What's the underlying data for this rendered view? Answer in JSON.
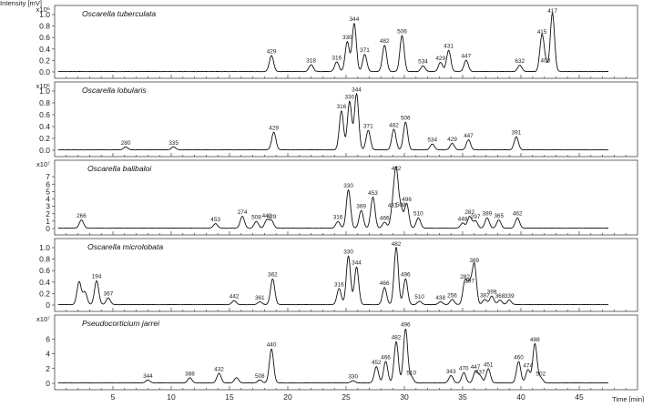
{
  "chart_data": {
    "type": "line",
    "title": "",
    "ylabel": "Intensity [mV]",
    "xlabel": "Time [min]",
    "x_ticks": [
      5,
      10,
      15,
      20,
      25,
      30,
      35,
      40,
      45
    ],
    "xlim": [
      0,
      50
    ],
    "grid": false,
    "panels": [
      {
        "name": "Oscarella tuberculata",
        "y_exponent": "x10⁶",
        "ylim": [
          0,
          1.0
        ],
        "y_ticks": [
          "0.0",
          "0.2",
          "0.4",
          "0.6",
          "0.8",
          "1.0"
        ],
        "peaks": [
          {
            "t": 18.6,
            "h": 0.28,
            "label": "429"
          },
          {
            "t": 22.0,
            "h": 0.12,
            "label": "318"
          },
          {
            "t": 24.2,
            "h": 0.17,
            "label": "316"
          },
          {
            "t": 25.1,
            "h": 0.52,
            "label": "330"
          },
          {
            "t": 25.7,
            "h": 0.84,
            "label": "344"
          },
          {
            "t": 26.6,
            "h": 0.3,
            "label": "371"
          },
          {
            "t": 28.3,
            "h": 0.46,
            "label": "482"
          },
          {
            "t": 29.8,
            "h": 0.63,
            "label": "506"
          },
          {
            "t": 31.6,
            "h": 0.1,
            "label": "534"
          },
          {
            "t": 33.1,
            "h": 0.16,
            "label": "429"
          },
          {
            "t": 33.8,
            "h": 0.37,
            "label": "431"
          },
          {
            "t": 35.3,
            "h": 0.2,
            "label": "447"
          },
          {
            "t": 39.9,
            "h": 0.11,
            "label": "632"
          },
          {
            "t": 41.8,
            "h": 0.62,
            "label": "415"
          },
          {
            "t": 42.1,
            "h": 0.12,
            "label": "403"
          },
          {
            "t": 42.7,
            "h": 1.02,
            "label": "417"
          }
        ]
      },
      {
        "name": "Oscarella lobularis",
        "y_exponent": "x10⁶",
        "ylim": [
          0,
          1.0
        ],
        "y_ticks": [
          "0.0",
          "0.2",
          "0.4",
          "0.6",
          "0.8",
          "1.0"
        ],
        "peaks": [
          {
            "t": 6.1,
            "h": 0.05,
            "label": "280"
          },
          {
            "t": 10.2,
            "h": 0.05,
            "label": "335"
          },
          {
            "t": 18.8,
            "h": 0.3,
            "label": "429"
          },
          {
            "t": 24.6,
            "h": 0.66,
            "label": "316"
          },
          {
            "t": 25.3,
            "h": 0.82,
            "label": "330"
          },
          {
            "t": 25.9,
            "h": 0.95,
            "label": "344"
          },
          {
            "t": 26.9,
            "h": 0.33,
            "label": "371"
          },
          {
            "t": 29.1,
            "h": 0.35,
            "label": "482"
          },
          {
            "t": 30.1,
            "h": 0.47,
            "label": "506"
          },
          {
            "t": 32.4,
            "h": 0.1,
            "label": "534"
          },
          {
            "t": 34.1,
            "h": 0.11,
            "label": "429"
          },
          {
            "t": 35.5,
            "h": 0.17,
            "label": "447"
          },
          {
            "t": 39.6,
            "h": 0.22,
            "label": "391"
          }
        ]
      },
      {
        "name": "Oscarella balibaloi",
        "y_exponent": "x10⁷",
        "ylim": [
          0,
          8
        ],
        "y_ticks": [
          "0",
          "1",
          "2",
          "3",
          "4",
          "5",
          "6",
          "7"
        ],
        "peaks": [
          {
            "t": 2.3,
            "h": 1.1,
            "label": "266"
          },
          {
            "t": 13.8,
            "h": 0.6,
            "label": "453"
          },
          {
            "t": 16.1,
            "h": 1.6,
            "label": "274"
          },
          {
            "t": 17.3,
            "h": 0.9,
            "label": "508"
          },
          {
            "t": 18.2,
            "h": 1.1,
            "label": "440"
          },
          {
            "t": 18.6,
            "h": 1.0,
            "label": "429"
          },
          {
            "t": 24.3,
            "h": 0.9,
            "label": "316"
          },
          {
            "t": 25.2,
            "h": 5.2,
            "label": "330"
          },
          {
            "t": 26.3,
            "h": 2.4,
            "label": "369"
          },
          {
            "t": 27.3,
            "h": 4.2,
            "label": "453"
          },
          {
            "t": 28.3,
            "h": 0.8,
            "label": "466"
          },
          {
            "t": 29.0,
            "h": 2.5,
            "label": "481"
          },
          {
            "t": 29.3,
            "h": 7.5,
            "label": "482"
          },
          {
            "t": 29.7,
            "h": 2.6,
            "label": "508"
          },
          {
            "t": 30.2,
            "h": 3.3,
            "label": "496"
          },
          {
            "t": 31.2,
            "h": 1.4,
            "label": "510"
          },
          {
            "t": 35.0,
            "h": 0.7,
            "label": "448"
          },
          {
            "t": 35.6,
            "h": 1.6,
            "label": "282"
          },
          {
            "t": 36.1,
            "h": 1.0,
            "label": "297"
          },
          {
            "t": 37.1,
            "h": 1.4,
            "label": "389"
          },
          {
            "t": 38.1,
            "h": 1.1,
            "label": "365"
          },
          {
            "t": 39.7,
            "h": 1.4,
            "label": "462"
          }
        ]
      },
      {
        "name": "Oscarella microlobata",
        "y_exponent": "",
        "ylim": [
          0,
          1.0
        ],
        "y_ticks": [
          "0",
          "0.2",
          "0.4",
          "0.6",
          "0.8",
          "1.0"
        ],
        "peaks": [
          {
            "t": 2.1,
            "h": 0.4,
            "label": ""
          },
          {
            "t": 2.6,
            "h": 0.22,
            "label": ""
          },
          {
            "t": 3.6,
            "h": 0.42,
            "label": "194"
          },
          {
            "t": 4.6,
            "h": 0.12,
            "label": "367"
          },
          {
            "t": 15.4,
            "h": 0.07,
            "label": "442"
          },
          {
            "t": 17.6,
            "h": 0.05,
            "label": "361"
          },
          {
            "t": 18.7,
            "h": 0.45,
            "label": "362"
          },
          {
            "t": 24.4,
            "h": 0.28,
            "label": "316"
          },
          {
            "t": 25.2,
            "h": 0.85,
            "label": "330"
          },
          {
            "t": 25.9,
            "h": 0.66,
            "label": "344"
          },
          {
            "t": 28.3,
            "h": 0.3,
            "label": "466"
          },
          {
            "t": 29.3,
            "h": 1.0,
            "label": "482"
          },
          {
            "t": 30.1,
            "h": 0.45,
            "label": "496"
          },
          {
            "t": 31.3,
            "h": 0.06,
            "label": "510"
          },
          {
            "t": 33.1,
            "h": 0.05,
            "label": "438"
          },
          {
            "t": 34.1,
            "h": 0.09,
            "label": "256"
          },
          {
            "t": 35.2,
            "h": 0.41,
            "label": "282"
          },
          {
            "t": 35.6,
            "h": 0.34,
            "label": "297"
          },
          {
            "t": 36.0,
            "h": 0.7,
            "label": "389"
          },
          {
            "t": 36.9,
            "h": 0.09,
            "label": "387"
          },
          {
            "t": 37.5,
            "h": 0.15,
            "label": "399"
          },
          {
            "t": 38.2,
            "h": 0.08,
            "label": "368"
          },
          {
            "t": 39.0,
            "h": 0.08,
            "label": "339"
          }
        ]
      },
      {
        "name": "Pseudocorticium jarrei",
        "y_exponent": "x10⁷",
        "ylim": [
          0,
          8
        ],
        "y_ticks": [
          "0",
          "2",
          "4",
          "6"
        ],
        "peaks": [
          {
            "t": 8.0,
            "h": 0.4,
            "label": "344"
          },
          {
            "t": 11.6,
            "h": 0.7,
            "label": "388"
          },
          {
            "t": 14.1,
            "h": 1.3,
            "label": "432"
          },
          {
            "t": 15.6,
            "h": 0.7,
            "label": ""
          },
          {
            "t": 17.6,
            "h": 0.4,
            "label": "508"
          },
          {
            "t": 18.6,
            "h": 4.6,
            "label": "440"
          },
          {
            "t": 25.6,
            "h": 0.3,
            "label": "330"
          },
          {
            "t": 27.6,
            "h": 2.2,
            "label": "452"
          },
          {
            "t": 28.4,
            "h": 2.9,
            "label": "466"
          },
          {
            "t": 29.3,
            "h": 5.6,
            "label": "482"
          },
          {
            "t": 30.1,
            "h": 7.3,
            "label": "496"
          },
          {
            "t": 30.6,
            "h": 0.8,
            "label": "510"
          },
          {
            "t": 34.0,
            "h": 1.0,
            "label": "343"
          },
          {
            "t": 35.1,
            "h": 1.4,
            "label": "470"
          },
          {
            "t": 36.1,
            "h": 1.6,
            "label": "447"
          },
          {
            "t": 36.5,
            "h": 0.9,
            "label": "437"
          },
          {
            "t": 37.2,
            "h": 1.9,
            "label": "451"
          },
          {
            "t": 39.8,
            "h": 2.9,
            "label": "460"
          },
          {
            "t": 40.6,
            "h": 1.8,
            "label": "474"
          },
          {
            "t": 41.2,
            "h": 5.3,
            "label": "488"
          },
          {
            "t": 41.7,
            "h": 0.7,
            "label": "502"
          }
        ]
      }
    ]
  }
}
